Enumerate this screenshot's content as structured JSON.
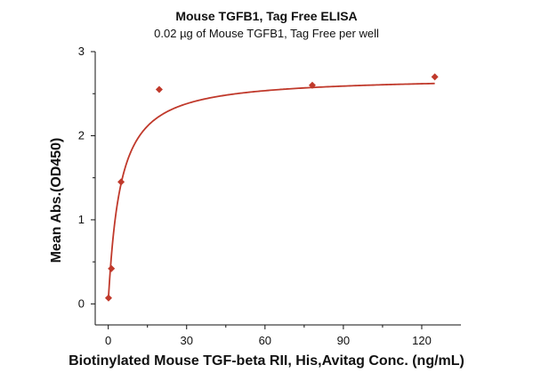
{
  "chart_data": {
    "type": "scatter",
    "title": "Mouse TGFB1, Tag Free ELISA",
    "subtitle": "0.02 µg of Mouse TGFB1, Tag Free per well",
    "xlabel": "Biotinylated Mouse TGF-beta RII, His,Avitag Conc. (ng/mL)",
    "ylabel": "Mean Abs.(OD450)",
    "xlim": [
      -5,
      135
    ],
    "ylim": [
      -0.25,
      3
    ],
    "xticks": [
      0,
      30,
      60,
      90,
      120
    ],
    "yticks": [
      0,
      1,
      2,
      3
    ],
    "grid": false,
    "legend": "none",
    "series": [
      {
        "x": [
          0.1,
          1.2,
          4.9,
          19.5,
          78.1,
          125
        ],
        "y": [
          0.07,
          0.42,
          1.45,
          2.55,
          2.6,
          2.7
        ],
        "color": "#c0392b",
        "marker": "diamond",
        "fit_curve": true
      }
    ]
  }
}
